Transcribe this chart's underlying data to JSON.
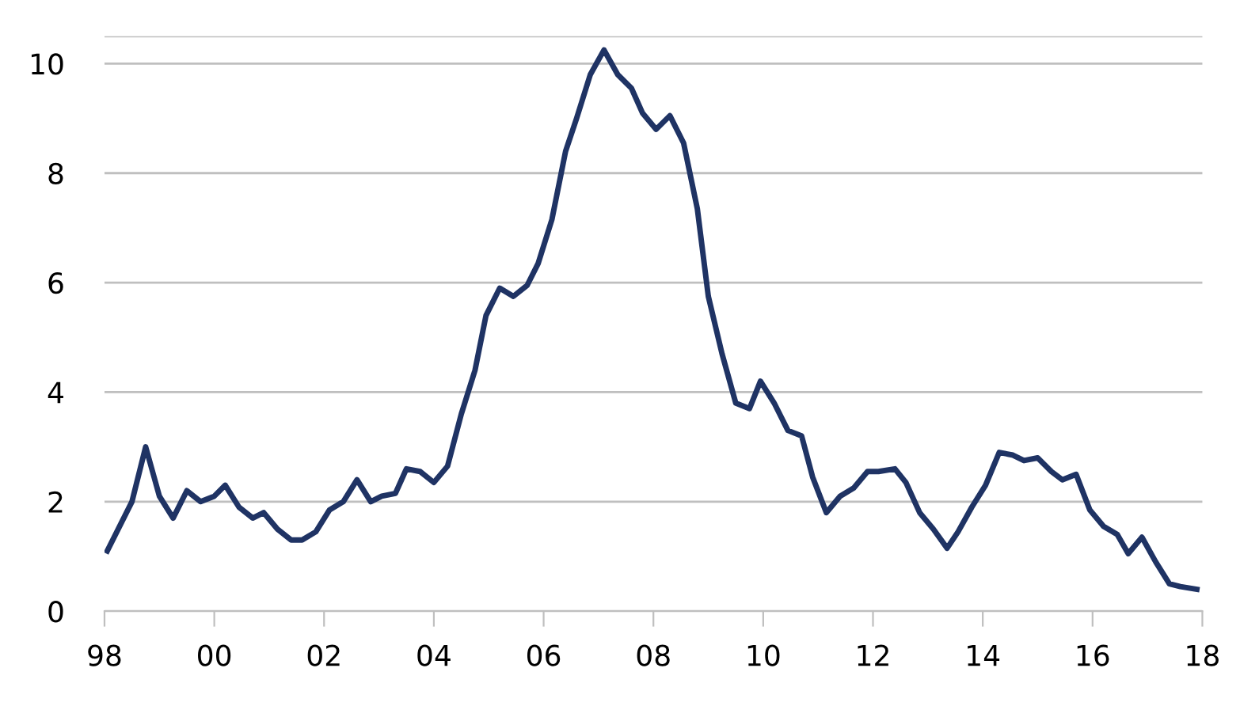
{
  "chart_data": {
    "type": "line",
    "x": [
      1998.05,
      1998.5,
      1998.75,
      1999.0,
      1999.25,
      1999.5,
      1999.75,
      2000.0,
      2000.2,
      2000.45,
      2000.7,
      2000.9,
      2001.15,
      2001.4,
      2001.6,
      2001.85,
      2002.1,
      2002.35,
      2002.6,
      2002.85,
      2003.05,
      2003.3,
      2003.5,
      2003.75,
      2004.0,
      2004.25,
      2004.5,
      2004.75,
      2004.95,
      2005.2,
      2005.45,
      2005.7,
      2005.9,
      2006.15,
      2006.4,
      2006.6,
      2006.85,
      2007.1,
      2007.35,
      2007.6,
      2007.8,
      2008.05,
      2008.3,
      2008.55,
      2008.8,
      2009.0,
      2009.25,
      2009.5,
      2009.75,
      2009.95,
      2010.2,
      2010.45,
      2010.7,
      2010.9,
      2011.15,
      2011.4,
      2011.65,
      2011.9,
      2012.1,
      2012.4,
      2012.6,
      2012.85,
      2013.1,
      2013.35,
      2013.55,
      2013.8,
      2014.05,
      2014.3,
      2014.55,
      2014.75,
      2015.0,
      2015.25,
      2015.45,
      2015.7,
      2015.95,
      2016.2,
      2016.45,
      2016.65,
      2016.9,
      2017.15,
      2017.4,
      2017.6,
      2017.9
    ],
    "series": [
      {
        "color": "#1f3364",
        "values": [
          1.1,
          2.0,
          3.0,
          2.1,
          1.7,
          2.2,
          2.0,
          2.1,
          2.3,
          1.9,
          1.7,
          1.8,
          1.5,
          1.3,
          1.3,
          1.45,
          1.85,
          2.0,
          2.4,
          2.0,
          2.1,
          2.15,
          2.6,
          2.55,
          2.35,
          2.65,
          3.6,
          4.4,
          5.4,
          5.9,
          5.75,
          5.95,
          6.35,
          7.15,
          8.4,
          9.0,
          9.8,
          10.25,
          9.8,
          9.55,
          9.1,
          8.8,
          9.05,
          8.55,
          7.35,
          5.75,
          4.7,
          3.8,
          3.7,
          4.2,
          3.8,
          3.3,
          3.2,
          2.45,
          1.8,
          2.1,
          2.25,
          2.55,
          2.55,
          2.6,
          2.35,
          1.8,
          1.5,
          1.15,
          1.45,
          1.9,
          2.3,
          2.9,
          2.85,
          2.75,
          2.8,
          2.55,
          2.4,
          2.5,
          1.85,
          1.55,
          1.4,
          1.05,
          1.35,
          0.9,
          0.5,
          0.45,
          0.4
        ]
      }
    ],
    "xlim": [
      1998,
      2018
    ],
    "xticks": [
      {
        "value": 1998,
        "label": "98"
      },
      {
        "value": 2000,
        "label": "00"
      },
      {
        "value": 2002,
        "label": "02"
      },
      {
        "value": 2004,
        "label": "04"
      },
      {
        "value": 2006,
        "label": "06"
      },
      {
        "value": 2008,
        "label": "08"
      },
      {
        "value": 2010,
        "label": "10"
      },
      {
        "value": 2012,
        "label": "12"
      },
      {
        "value": 2014,
        "label": "14"
      },
      {
        "value": 2016,
        "label": "16"
      },
      {
        "value": 2018,
        "label": "18"
      }
    ],
    "ylim": [
      0,
      10.5
    ],
    "yticks": [
      0,
      2,
      4,
      6,
      8,
      10,
      {
        "value": 10.5,
        "label": null
      }
    ],
    "grid": "y",
    "marker": "none",
    "line_style": "solid"
  }
}
